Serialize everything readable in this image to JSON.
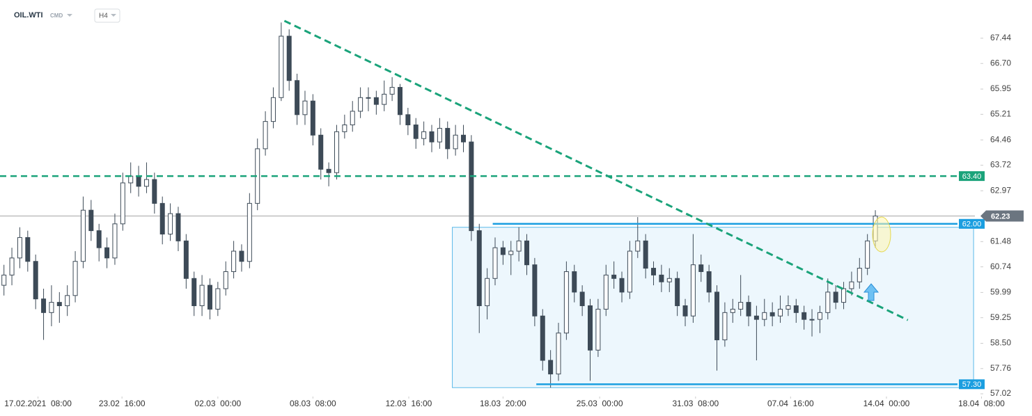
{
  "header": {
    "symbol": "OIL.WTI",
    "market": "CMD",
    "interval": "H4"
  },
  "chart_data": {
    "type": "candlestick",
    "ohlc": [
      [
        60.2,
        60.8,
        59.9,
        60.5
      ],
      [
        60.5,
        61.3,
        60.2,
        61.0
      ],
      [
        61.0,
        61.9,
        60.7,
        61.6
      ],
      [
        61.6,
        61.8,
        60.6,
        60.9
      ],
      [
        60.9,
        61.1,
        59.5,
        59.8
      ],
      [
        59.8,
        60.1,
        58.6,
        59.4
      ],
      [
        59.4,
        60.2,
        59.0,
        59.7
      ],
      [
        59.7,
        60.0,
        59.1,
        59.6
      ],
      [
        59.6,
        60.2,
        59.3,
        59.9
      ],
      [
        59.9,
        61.2,
        59.7,
        60.9
      ],
      [
        60.9,
        62.8,
        60.7,
        62.4
      ],
      [
        62.4,
        62.7,
        61.5,
        61.8
      ],
      [
        61.8,
        62.0,
        60.9,
        61.3
      ],
      [
        61.3,
        61.6,
        60.7,
        61.0
      ],
      [
        61.0,
        62.3,
        60.8,
        62.0
      ],
      [
        62.0,
        63.5,
        61.8,
        63.2
      ],
      [
        63.2,
        63.8,
        62.9,
        63.4
      ],
      [
        63.4,
        63.7,
        62.8,
        63.1
      ],
      [
        63.1,
        63.8,
        62.9,
        63.3
      ],
      [
        63.3,
        63.5,
        62.3,
        62.6
      ],
      [
        62.6,
        62.8,
        61.4,
        61.7
      ],
      [
        61.7,
        62.6,
        61.5,
        62.3
      ],
      [
        62.3,
        62.5,
        61.2,
        61.5
      ],
      [
        61.5,
        61.7,
        60.1,
        60.4
      ],
      [
        60.4,
        60.6,
        59.3,
        59.6
      ],
      [
        59.6,
        60.5,
        59.3,
        60.2
      ],
      [
        60.2,
        60.4,
        59.2,
        59.5
      ],
      [
        59.5,
        60.3,
        59.3,
        60.1
      ],
      [
        60.1,
        60.9,
        59.9,
        60.6
      ],
      [
        60.6,
        61.5,
        60.4,
        61.2
      ],
      [
        61.2,
        61.4,
        60.6,
        60.9
      ],
      [
        60.9,
        62.9,
        60.7,
        62.6
      ],
      [
        62.6,
        64.5,
        62.4,
        64.2
      ],
      [
        64.2,
        65.3,
        64.0,
        65.0
      ],
      [
        65.0,
        66.0,
        64.8,
        65.7
      ],
      [
        65.7,
        67.9,
        65.6,
        67.5
      ],
      [
        67.5,
        67.7,
        65.9,
        66.2
      ],
      [
        66.2,
        66.4,
        64.9,
        65.2
      ],
      [
        65.2,
        65.9,
        64.9,
        65.6
      ],
      [
        65.6,
        65.8,
        64.3,
        64.6
      ],
      [
        64.6,
        64.8,
        63.3,
        63.6
      ],
      [
        63.6,
        63.8,
        63.1,
        63.5
      ],
      [
        63.5,
        64.9,
        63.3,
        64.7
      ],
      [
        64.7,
        65.2,
        64.5,
        64.9
      ],
      [
        64.9,
        65.6,
        64.7,
        65.3
      ],
      [
        65.3,
        66.0,
        65.1,
        65.7
      ],
      [
        65.7,
        66.0,
        65.3,
        65.7
      ],
      [
        65.7,
        65.9,
        65.2,
        65.5
      ],
      [
        65.5,
        66.2,
        65.3,
        65.8
      ],
      [
        65.8,
        66.3,
        65.6,
        66.0
      ],
      [
        66.0,
        66.1,
        64.9,
        65.2
      ],
      [
        65.2,
        65.4,
        64.6,
        64.9
      ],
      [
        64.9,
        65.1,
        64.2,
        64.5
      ],
      [
        64.5,
        65.0,
        64.3,
        64.7
      ],
      [
        64.7,
        64.9,
        64.1,
        64.4
      ],
      [
        64.4,
        65.1,
        64.2,
        64.8
      ],
      [
        64.8,
        65.0,
        63.9,
        64.2
      ],
      [
        64.2,
        64.9,
        64.0,
        64.6
      ],
      [
        64.6,
        64.9,
        64.1,
        64.4
      ],
      [
        64.4,
        64.6,
        61.5,
        61.8
      ],
      [
        61.8,
        62.0,
        58.8,
        59.6
      ],
      [
        59.6,
        60.7,
        59.2,
        60.4
      ],
      [
        60.4,
        61.6,
        60.2,
        61.3
      ],
      [
        61.3,
        61.5,
        60.8,
        61.1
      ],
      [
        61.1,
        61.5,
        60.5,
        61.2
      ],
      [
        61.2,
        61.9,
        60.9,
        61.5
      ],
      [
        61.5,
        61.7,
        60.5,
        60.8
      ],
      [
        60.8,
        61.0,
        59.0,
        59.3
      ],
      [
        59.3,
        59.5,
        57.7,
        58.0
      ],
      [
        58.0,
        58.3,
        57.2,
        57.6
      ],
      [
        57.6,
        59.1,
        57.4,
        58.8
      ],
      [
        58.8,
        60.9,
        58.6,
        60.6
      ],
      [
        60.6,
        60.8,
        59.7,
        60.0
      ],
      [
        60.0,
        60.2,
        59.3,
        59.6
      ],
      [
        59.6,
        59.8,
        57.4,
        58.3
      ],
      [
        58.3,
        59.8,
        58.1,
        59.5
      ],
      [
        59.5,
        60.8,
        59.3,
        60.5
      ],
      [
        60.5,
        60.9,
        60.1,
        60.4
      ],
      [
        60.4,
        60.6,
        59.7,
        60.0
      ],
      [
        60.0,
        61.5,
        59.8,
        61.2
      ],
      [
        61.2,
        62.2,
        61.0,
        61.5
      ],
      [
        61.5,
        61.7,
        60.4,
        60.7
      ],
      [
        60.7,
        60.9,
        60.2,
        60.5
      ],
      [
        60.5,
        60.8,
        60.0,
        60.3
      ],
      [
        60.3,
        60.7,
        60.0,
        60.4
      ],
      [
        60.4,
        60.6,
        59.3,
        59.6
      ],
      [
        59.6,
        59.8,
        59.0,
        59.3
      ],
      [
        59.3,
        61.7,
        59.1,
        60.8
      ],
      [
        60.8,
        61.1,
        60.3,
        60.6
      ],
      [
        60.6,
        60.8,
        59.7,
        60.0
      ],
      [
        60.0,
        60.2,
        57.7,
        58.6
      ],
      [
        58.6,
        59.7,
        58.4,
        59.4
      ],
      [
        59.4,
        59.8,
        59.1,
        59.5
      ],
      [
        59.5,
        60.5,
        59.3,
        59.7
      ],
      [
        59.7,
        59.9,
        59.0,
        59.3
      ],
      [
        59.3,
        59.6,
        58.0,
        59.2
      ],
      [
        59.2,
        59.8,
        59.0,
        59.4
      ],
      [
        59.4,
        59.7,
        59.0,
        59.3
      ],
      [
        59.3,
        59.9,
        59.1,
        59.5
      ],
      [
        59.5,
        59.9,
        59.3,
        59.6
      ],
      [
        59.6,
        59.8,
        59.1,
        59.4
      ],
      [
        59.4,
        59.6,
        58.9,
        59.2
      ],
      [
        59.2,
        59.5,
        58.7,
        59.2
      ],
      [
        59.2,
        59.6,
        58.8,
        59.4
      ],
      [
        59.4,
        60.4,
        59.2,
        60.0
      ],
      [
        60.0,
        60.2,
        59.5,
        59.7
      ],
      [
        59.7,
        60.3,
        59.5,
        60.1
      ],
      [
        60.1,
        60.6,
        59.9,
        60.3
      ],
      [
        60.3,
        61.0,
        60.1,
        60.7
      ],
      [
        60.7,
        61.7,
        60.5,
        61.5
      ],
      [
        61.5,
        62.4,
        61.3,
        62.23
      ]
    ],
    "up_color": "#ffffff",
    "down_color": "#3d4a57",
    "outline_color": "#3d4a57",
    "xlim": [
      -0.5,
      124.5
    ],
    "xticks": [
      {
        "value": 4.3,
        "label": "17.02.2021  08:00"
      },
      {
        "value": 14.9,
        "label": "23.02  16:00"
      },
      {
        "value": 27,
        "label": "02.03  00:00"
      },
      {
        "value": 39,
        "label": "08.03  08:00"
      },
      {
        "value": 51.1,
        "label": "12.03  16:00"
      },
      {
        "value": 63,
        "label": "18.03  20:00"
      },
      {
        "value": 75.2,
        "label": "25.03  00:00"
      },
      {
        "value": 87.3,
        "label": "31.03  08:00"
      },
      {
        "value": 99.3,
        "label": "07.04  16:00"
      },
      {
        "value": 111.4,
        "label": "14.04  00:00"
      },
      {
        "value": 123.4,
        "label": "18.04  08:00"
      }
    ],
    "ylim": [
      56.94,
      68.56
    ],
    "yticks": [
      67.44,
      {
        "value": 66.7,
        "label": "66.70"
      },
      65.95,
      65.21,
      64.46,
      63.72,
      62.97,
      61.48,
      60.74,
      59.99,
      59.25,
      {
        "value": 58.5,
        "label": "58.50"
      },
      57.76,
      57.02
    ],
    "levels": [
      {
        "value": 63.4,
        "label": "63.40",
        "color": "#1aa37a",
        "dashed": true
      },
      {
        "value": 62.0,
        "label": "62.00",
        "color": "#1a9ee0",
        "dashed": false,
        "from": 61.7
      },
      {
        "value": 57.3,
        "label": "57.30",
        "color": "#1a9ee0",
        "dashed": false,
        "from": 67.2
      }
    ],
    "last_price": {
      "value": 62.23,
      "label": "62.23"
    },
    "zone": {
      "x": [
        56.6,
        122.4
      ],
      "y": [
        57.2,
        61.9
      ],
      "color": "#1a9ee0"
    },
    "trendline": {
      "x": [
        35.4,
        114.1
      ],
      "y": [
        67.95,
        59.18
      ],
      "color": "#1aa37a"
    }
  }
}
